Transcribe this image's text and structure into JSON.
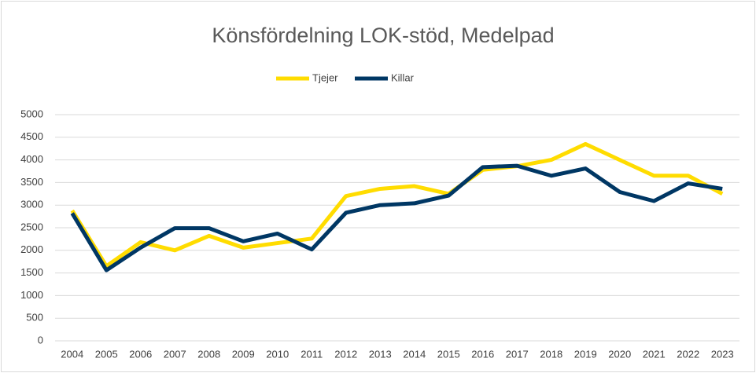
{
  "chart_data": {
    "type": "line",
    "title": "Könsfördelning LOK-stöd, Medelpad",
    "categories": [
      "2004",
      "2005",
      "2006",
      "2007",
      "2008",
      "2009",
      "2010",
      "2011",
      "2012",
      "2013",
      "2014",
      "2015",
      "2016",
      "2017",
      "2018",
      "2019",
      "2020",
      "2021",
      "2022",
      "2023"
    ],
    "series": [
      {
        "name": "Tjejer",
        "color": "#ffdc00",
        "values": [
          2880,
          1650,
          2180,
          2000,
          2320,
          2060,
          2160,
          2260,
          3200,
          3360,
          3420,
          3250,
          3780,
          3860,
          4000,
          4350,
          4000,
          3650,
          3650,
          3250
        ]
      },
      {
        "name": "Killar",
        "color": "#003764",
        "values": [
          2820,
          1560,
          2060,
          2490,
          2490,
          2200,
          2370,
          2020,
          2830,
          3000,
          3040,
          3210,
          3840,
          3870,
          3650,
          3810,
          3290,
          3090,
          3480,
          3360
        ]
      }
    ],
    "ylim": [
      0,
      5000
    ],
    "yticks": [
      0,
      500,
      1000,
      1500,
      2000,
      2500,
      3000,
      3500,
      4000,
      4500,
      5000
    ],
    "grid": true,
    "legend": "top"
  }
}
